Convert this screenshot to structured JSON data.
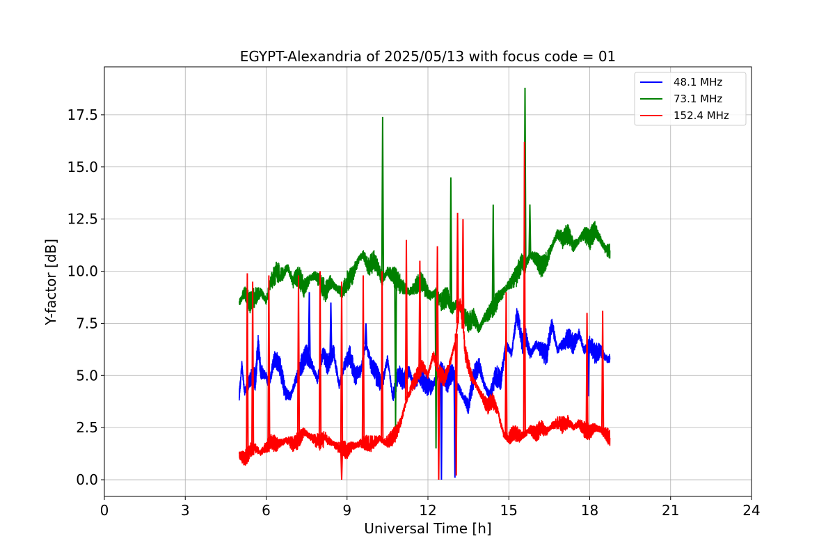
{
  "chart_data": {
    "type": "line",
    "title": "EGYPT-Alexandria of 2025/05/13 with focus code = 01",
    "xlabel": "Universal Time [h]",
    "ylabel": "Y-factor [dB]",
    "xlim": [
      0,
      24
    ],
    "ylim": [
      -0.8,
      19.8
    ],
    "xticks": [
      0,
      3,
      6,
      9,
      12,
      15,
      18,
      21,
      24
    ],
    "xtick_labels": [
      "0",
      "3",
      "6",
      "9",
      "12",
      "15",
      "18",
      "21",
      "24"
    ],
    "yticks": [
      0,
      2.5,
      5,
      7.5,
      10,
      12.5,
      15,
      17.5
    ],
    "ytick_labels": [
      "0.0",
      "2.5",
      "5.0",
      "7.5",
      "10.0",
      "12.5",
      "15.0",
      "17.5"
    ],
    "grid": true,
    "legend_position": "top-right",
    "series": [
      {
        "name": " 48.1 MHz",
        "color": "#0000ff",
        "x": [
          5.0,
          5.1,
          5.2,
          5.3,
          5.5,
          5.6,
          5.7,
          5.8,
          6.0,
          6.1,
          6.3,
          6.5,
          6.7,
          6.9,
          7.1,
          7.3,
          7.5,
          7.7,
          7.9,
          8.1,
          8.3,
          8.5,
          8.7,
          8.9,
          9.1,
          9.3,
          9.5,
          9.7,
          9.9,
          10.1,
          10.3,
          10.5,
          10.7,
          10.9,
          11.1,
          11.3,
          11.5,
          11.7,
          11.9,
          12.1,
          12.3,
          12.5,
          12.7,
          12.9,
          13.1,
          13.3,
          13.5,
          13.7,
          13.9,
          14.1,
          14.3,
          14.5,
          14.7,
          14.9,
          15.1,
          15.3,
          15.5,
          15.6,
          15.8,
          16.0,
          16.2,
          16.4,
          16.6,
          16.8,
          17.0,
          17.2,
          17.4,
          17.6,
          17.8,
          18.0,
          18.2,
          18.4,
          18.6,
          18.75
        ],
        "values": [
          4.0,
          5.5,
          4.2,
          4.5,
          5.0,
          4.8,
          6.5,
          5.2,
          5.0,
          4.5,
          5.8,
          5.5,
          4.2,
          4.0,
          4.8,
          5.5,
          6.0,
          5.5,
          4.8,
          6.0,
          5.5,
          6.2,
          4.5,
          5.5,
          6.0,
          5.0,
          5.2,
          6.5,
          5.5,
          5.0,
          4.5,
          5.8,
          4.0,
          5.0,
          4.8,
          5.2,
          4.5,
          5.0,
          4.6,
          4.4,
          4.8,
          5.5,
          4.6,
          5.2,
          4.5,
          4.0,
          3.5,
          5.0,
          5.5,
          4.5,
          4.0,
          5.0,
          4.8,
          6.5,
          6.0,
          8.0,
          6.5,
          7.0,
          6.0,
          6.5,
          6.2,
          6.0,
          7.5,
          6.2,
          6.5,
          6.8,
          6.5,
          7.0,
          6.2,
          6.5,
          6.0,
          6.2,
          5.8,
          5.8
        ]
      },
      {
        "name": " 73.1 MHz",
        "color": "#008000",
        "x": [
          5.0,
          5.2,
          5.4,
          5.6,
          5.8,
          6.0,
          6.2,
          6.4,
          6.6,
          6.8,
          7.0,
          7.2,
          7.4,
          7.6,
          7.8,
          8.0,
          8.2,
          8.4,
          8.6,
          8.8,
          9.0,
          9.2,
          9.4,
          9.6,
          9.8,
          10.0,
          10.2,
          10.3,
          10.5,
          10.7,
          10.9,
          11.1,
          11.3,
          11.5,
          11.7,
          11.9,
          12.1,
          12.3,
          12.5,
          12.7,
          12.9,
          13.1,
          13.3,
          13.5,
          13.7,
          13.9,
          14.1,
          14.3,
          14.5,
          14.7,
          14.9,
          15.1,
          15.3,
          15.5,
          15.6,
          15.8,
          16.0,
          16.2,
          16.4,
          16.6,
          16.8,
          17.0,
          17.2,
          17.4,
          17.6,
          17.8,
          18.0,
          18.2,
          18.4,
          18.6,
          18.75
        ],
        "values": [
          8.5,
          9.0,
          8.5,
          8.8,
          9.0,
          8.6,
          9.5,
          10.0,
          9.8,
          10.2,
          9.5,
          9.8,
          9.2,
          9.6,
          9.8,
          9.5,
          9.0,
          9.5,
          9.2,
          9.0,
          9.5,
          9.8,
          10.5,
          10.8,
          10.2,
          10.5,
          10.0,
          9.5,
          10.0,
          9.8,
          9.5,
          9.2,
          9.0,
          9.2,
          9.5,
          9.2,
          8.8,
          9.0,
          8.5,
          8.8,
          8.2,
          8.5,
          8.0,
          7.5,
          7.8,
          7.2,
          7.8,
          8.0,
          8.5,
          8.8,
          9.2,
          9.5,
          9.8,
          10.5,
          10.2,
          10.8,
          10.6,
          10.2,
          10.5,
          11.2,
          11.8,
          11.5,
          11.8,
          11.2,
          11.5,
          11.8,
          11.5,
          12.0,
          11.5,
          11.0,
          11.0
        ]
      },
      {
        "name": " 152.4 MHz",
        "color": "#ff0000",
        "x": [
          5.0,
          5.2,
          5.4,
          5.6,
          5.8,
          6.0,
          6.2,
          6.4,
          6.6,
          6.8,
          7.0,
          7.2,
          7.4,
          7.6,
          7.8,
          8.0,
          8.2,
          8.4,
          8.6,
          8.8,
          9.0,
          9.2,
          9.4,
          9.6,
          9.8,
          10.0,
          10.2,
          10.4,
          10.6,
          10.8,
          11.0,
          11.2,
          11.4,
          11.6,
          11.8,
          12.0,
          12.2,
          12.4,
          12.6,
          12.8,
          13.0,
          13.2,
          13.4,
          13.6,
          13.8,
          14.0,
          14.2,
          14.4,
          14.6,
          14.8,
          15.0,
          15.2,
          15.4,
          15.6,
          15.8,
          16.0,
          16.2,
          16.4,
          16.6,
          16.8,
          17.0,
          17.2,
          17.4,
          17.6,
          17.8,
          18.0,
          18.2,
          18.4,
          18.6,
          18.75
        ],
        "values": [
          1.2,
          1.0,
          1.4,
          1.5,
          1.3,
          1.6,
          1.8,
          1.7,
          1.8,
          1.9,
          1.7,
          1.9,
          2.3,
          2.1,
          1.9,
          1.8,
          2.0,
          1.8,
          1.6,
          1.5,
          1.4,
          1.6,
          1.7,
          1.8,
          1.7,
          1.8,
          2.0,
          1.8,
          1.9,
          2.2,
          2.8,
          3.8,
          4.5,
          5.0,
          5.5,
          5.0,
          6.0,
          5.2,
          4.8,
          5.5,
          6.5,
          8.5,
          6.0,
          5.0,
          4.5,
          4.0,
          3.5,
          3.8,
          3.2,
          2.2,
          2.0,
          2.3,
          2.1,
          2.2,
          2.4,
          2.2,
          2.5,
          2.3,
          2.6,
          2.7,
          2.6,
          2.8,
          2.5,
          2.7,
          2.4,
          2.3,
          2.5,
          2.4,
          2.2,
          2.0
        ]
      }
    ],
    "spikes": [
      {
        "series": 1,
        "x": 10.32,
        "y": 17.4
      },
      {
        "series": 1,
        "x": 12.85,
        "y": 14.5
      },
      {
        "series": 1,
        "x": 14.42,
        "y": 13.2
      },
      {
        "series": 1,
        "x": 15.6,
        "y": 18.8
      },
      {
        "series": 1,
        "x": 15.78,
        "y": 13.2
      },
      {
        "series": 1,
        "x": 10.8,
        "y": 2.5
      },
      {
        "series": 1,
        "x": 12.3,
        "y": 1.5
      },
      {
        "series": 2,
        "x": 5.3,
        "y": 9.9
      },
      {
        "series": 2,
        "x": 5.5,
        "y": 9.5
      },
      {
        "series": 2,
        "x": 6.1,
        "y": 9.8
      },
      {
        "series": 2,
        "x": 7.2,
        "y": 9.8
      },
      {
        "series": 2,
        "x": 8.0,
        "y": 10.0
      },
      {
        "series": 2,
        "x": 8.8,
        "y": 9.5
      },
      {
        "series": 2,
        "x": 9.6,
        "y": 9.8
      },
      {
        "series": 2,
        "x": 10.3,
        "y": 10.0
      },
      {
        "series": 2,
        "x": 11.2,
        "y": 11.5
      },
      {
        "series": 2,
        "x": 11.7,
        "y": 10.5
      },
      {
        "series": 2,
        "x": 12.35,
        "y": 11.2
      },
      {
        "series": 2,
        "x": 13.1,
        "y": 12.8
      },
      {
        "series": 2,
        "x": 13.3,
        "y": 12.5
      },
      {
        "series": 2,
        "x": 14.9,
        "y": 9.0
      },
      {
        "series": 2,
        "x": 15.58,
        "y": 16.2
      },
      {
        "series": 2,
        "x": 17.9,
        "y": 8.0
      },
      {
        "series": 2,
        "x": 18.48,
        "y": 8.1
      },
      {
        "series": 2,
        "x": 12.4,
        "y": 0.0
      },
      {
        "series": 2,
        "x": 13.05,
        "y": 0.2
      },
      {
        "series": 2,
        "x": 8.8,
        "y": 0.0
      },
      {
        "series": 0,
        "x": 12.5,
        "y": 0.0
      },
      {
        "series": 0,
        "x": 13.0,
        "y": 0.1
      },
      {
        "series": 0,
        "x": 7.6,
        "y": 9.0
      },
      {
        "series": 0,
        "x": 8.4,
        "y": 8.5
      },
      {
        "series": 0,
        "x": 9.7,
        "y": 7.5
      },
      {
        "series": 0,
        "x": 17.95,
        "y": 4.0
      }
    ]
  }
}
